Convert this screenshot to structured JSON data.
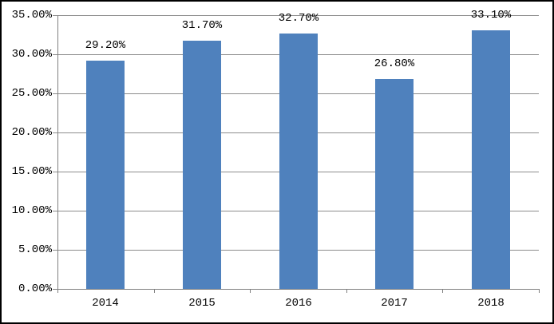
{
  "chart_data": {
    "type": "bar",
    "title": "",
    "xlabel": "",
    "ylabel": "",
    "categories": [
      "2014",
      "2015",
      "2016",
      "2017",
      "2018"
    ],
    "values": [
      29.2,
      31.7,
      32.7,
      26.8,
      33.1
    ],
    "data_labels": [
      "29.20%",
      "31.70%",
      "32.70%",
      "26.80%",
      "33.10%"
    ],
    "y_tick_labels": [
      "35.00%",
      "30.00%",
      "25.00%",
      "20.00%",
      "15.00%",
      "10.00%",
      "5.00%",
      "0.00%"
    ],
    "ylim": [
      0,
      35
    ],
    "y_step": 5,
    "grid": true,
    "legend": "none",
    "colors": {
      "bar": "#4F81BD",
      "grid": "#8C8C8C",
      "axis": "#808080",
      "frame_border": "#000000",
      "background": "#FFFFFF",
      "text": "#000000"
    }
  }
}
